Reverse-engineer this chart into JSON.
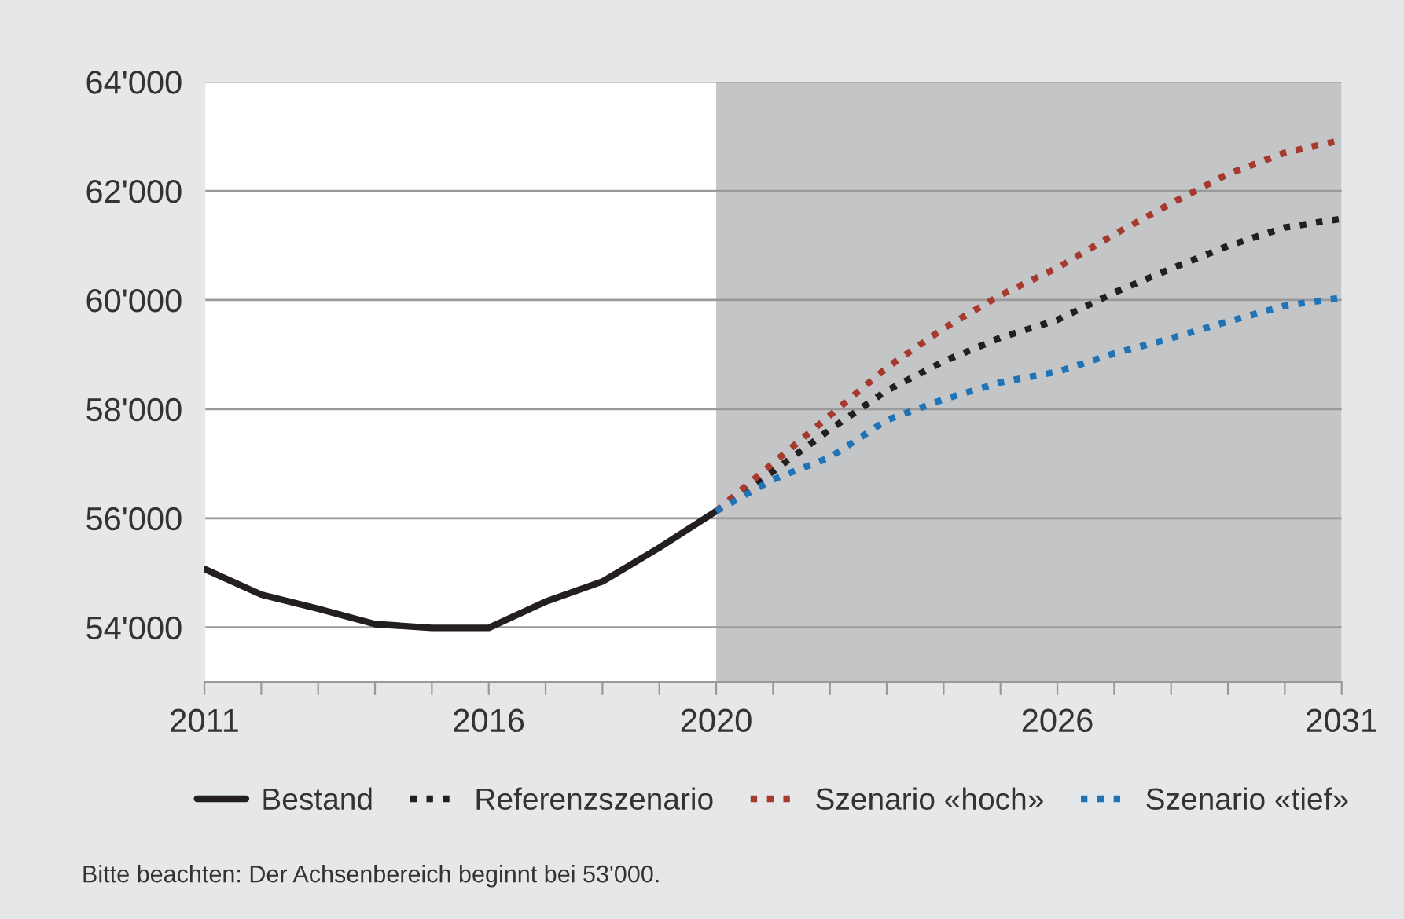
{
  "chart_data": {
    "type": "line",
    "x": [
      2011,
      2012,
      2013,
      2014,
      2015,
      2016,
      2017,
      2018,
      2019,
      2020
    ],
    "series": [
      {
        "name": "Bestand",
        "color": "#231f20",
        "line_style": "solid",
        "values": [
          55070,
          54600,
          54340,
          54060,
          53990,
          53990,
          54470,
          54840,
          55460,
          56130
        ]
      },
      {
        "name": "Referenzszenario",
        "color": "#231f20",
        "line_style": "dotted",
        "x": [
          2020,
          2021,
          2022,
          2023,
          2024,
          2025,
          2026,
          2027,
          2028,
          2029,
          2030,
          2031
        ],
        "values": [
          56130,
          56860,
          57625,
          58340,
          58875,
          59310,
          59635,
          60135,
          60575,
          60990,
          61330,
          61490
        ]
      },
      {
        "name": "Szenario «hoch»",
        "color": "#a63a2e",
        "line_style": "dotted",
        "x": [
          2020,
          2021,
          2022,
          2023,
          2024,
          2025,
          2026,
          2027,
          2028,
          2029,
          2030,
          2031
        ],
        "values": [
          56130,
          57010,
          57885,
          58760,
          59480,
          60090,
          60590,
          61200,
          61770,
          62310,
          62700,
          62930
        ]
      },
      {
        "name": "Szenario «tief»",
        "color": "#1f73b7",
        "line_style": "dotted",
        "x": [
          2020,
          2021,
          2022,
          2023,
          2024,
          2025,
          2026,
          2027,
          2028,
          2029,
          2030,
          2031
        ],
        "values": [
          56130,
          56710,
          57115,
          57800,
          58180,
          58490,
          58685,
          59020,
          59300,
          59605,
          59895,
          60040
        ]
      }
    ],
    "xlim": [
      2011,
      2031
    ],
    "xticks": [
      2011,
      {
        "value": 2012,
        "label": null
      },
      {
        "value": 2013,
        "label": null
      },
      {
        "value": 2014,
        "label": null
      },
      {
        "value": 2015,
        "label": null
      },
      2016,
      {
        "value": 2017,
        "label": null
      },
      {
        "value": 2018,
        "label": null
      },
      {
        "value": 2019,
        "label": null
      },
      2020,
      {
        "value": 2021,
        "label": null
      },
      {
        "value": 2022,
        "label": null
      },
      {
        "value": 2023,
        "label": null
      },
      {
        "value": 2024,
        "label": null
      },
      {
        "value": 2025,
        "label": null
      },
      2026,
      {
        "value": 2027,
        "label": null
      },
      {
        "value": 2028,
        "label": null
      },
      {
        "value": 2029,
        "label": null
      },
      {
        "value": 2030,
        "label": null
      },
      2031
    ],
    "ylim": [
      53000,
      64000
    ],
    "yticks": [
      {
        "value": 54000,
        "label": "54'000"
      },
      {
        "value": 56000,
        "label": "56'000"
      },
      {
        "value": 58000,
        "label": "58'000"
      },
      {
        "value": 60000,
        "label": "60'000"
      },
      {
        "value": 62000,
        "label": "62'000"
      },
      {
        "value": 64000,
        "label": "64'000"
      }
    ],
    "bands": [
      {
        "axis": "x",
        "from": 2020,
        "to": 2031,
        "color": "#c4c5c7"
      }
    ],
    "grid": "y",
    "legend": "bottom",
    "annotations": [
      "Bitte beachten: Der Achsenbereich beginnt bei 53'000."
    ]
  }
}
